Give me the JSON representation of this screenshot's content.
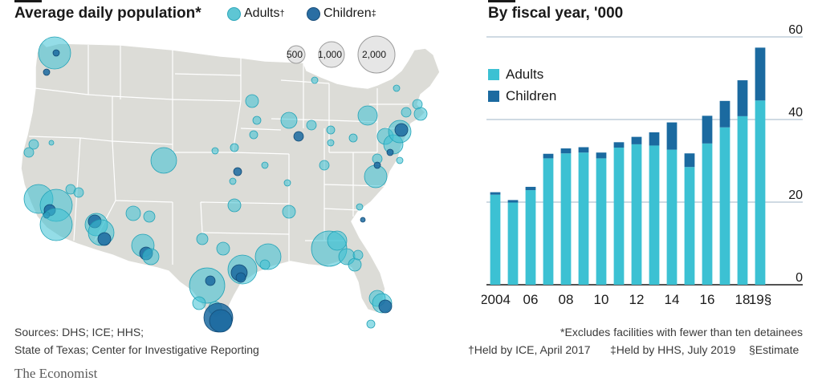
{
  "left": {
    "title": "Average daily population*",
    "legend": [
      {
        "label": "Adults",
        "marker": "†",
        "color": "#5ec6d4"
      },
      {
        "label": "Children",
        "marker": "‡",
        "color": "#2a6ea3"
      }
    ],
    "size_legend": [
      "500",
      "1,000",
      "2,000"
    ],
    "sources_line1": "Sources: DHS; ICE; HHS;",
    "sources_line2": "State of Texas; Center for Investigative Reporting"
  },
  "right": {
    "title": "By fiscal year, '000",
    "footnote1": "*Excludes facilities with fewer than ten detainees",
    "footnote2a": "†Held by ICE, April 2017",
    "footnote2b": "‡Held by HHS, July 2019",
    "footnote2c": "§Estimate"
  },
  "brand": "The Economist",
  "colors": {
    "adults": "#3cc1d3",
    "children": "#1b6aa0",
    "map": "#dcdcd7"
  },
  "chart_data": [
    {
      "type": "bar",
      "title": "By fiscal year, '000",
      "categories": [
        "2004",
        "2005",
        "2006",
        "2007",
        "2008",
        "2009",
        "2010",
        "2011",
        "2012",
        "2013",
        "2014",
        "2015",
        "2016",
        "2017",
        "2018",
        "2019"
      ],
      "tick_labels": [
        "2004",
        "",
        "06",
        "",
        "08",
        "",
        "10",
        "",
        "12",
        "",
        "14",
        "",
        "16",
        "",
        "18",
        "19§"
      ],
      "series": [
        {
          "name": "Adults",
          "values": [
            21.8,
            19.9,
            22.9,
            30.6,
            31.8,
            32.0,
            30.6,
            33.2,
            34.0,
            33.7,
            32.7,
            28.5,
            34.2,
            38.1,
            40.8,
            44.6
          ]
        },
        {
          "name": "Children",
          "values": [
            0.6,
            0.6,
            0.8,
            1.1,
            1.2,
            1.3,
            1.4,
            1.3,
            1.8,
            3.2,
            6.6,
            3.3,
            6.7,
            6.4,
            8.7,
            12.8
          ]
        }
      ],
      "stacked": true,
      "ylim": [
        0,
        60
      ],
      "yticks": [
        0,
        20,
        40,
        60
      ],
      "grid": true
    }
  ]
}
